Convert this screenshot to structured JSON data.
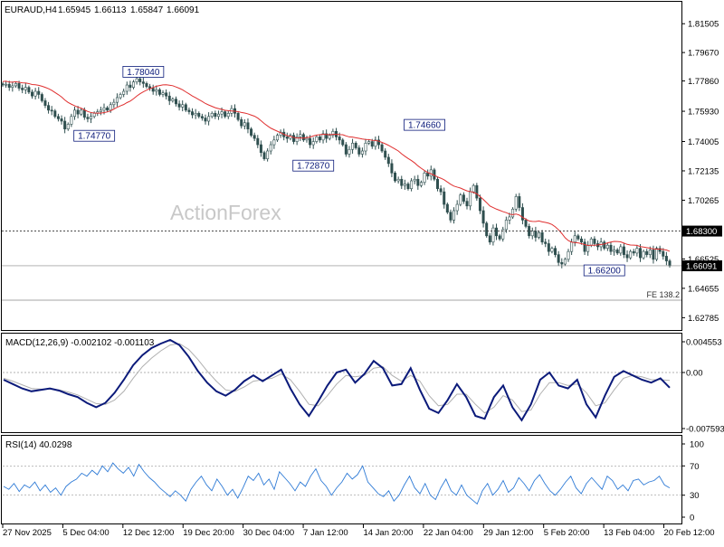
{
  "chart_data": [
    {
      "type": "candlestick",
      "symbol": "EURAUD,H4",
      "ohlc": [
        "1.65945",
        "1.66113",
        "1.65847",
        "1.66091"
      ],
      "watermark": "ActionForex",
      "ylim": [
        1.62,
        1.829
      ],
      "y_ticks": [
        "1.81505",
        "1.79670",
        "1.77860",
        "1.75930",
        "1.74005",
        "1.72135",
        "1.70265",
        "1.68300",
        "1.66525",
        "1.64655",
        "1.62785"
      ],
      "current_price": "1.66091",
      "levels": [
        {
          "label": "1.68300",
          "value": 1.683,
          "style": "dotted"
        },
        {
          "label": "1.66091",
          "value": 1.66091,
          "style": "solid"
        },
        {
          "label": "FE 138.2",
          "value": 1.639,
          "style": "solid"
        }
      ],
      "annotations": [
        {
          "label": "1.78040",
          "x": 43,
          "value": 1.7804
        },
        {
          "label": "1.74770",
          "x": 28,
          "value": 1.7477
        },
        {
          "label": "1.72870",
          "x": 95,
          "value": 1.7287
        },
        {
          "label": "1.74660",
          "x": 129,
          "value": 1.7466
        },
        {
          "label": "1.66200",
          "x": 184,
          "value": 1.662
        }
      ],
      "close": [
        1.776,
        1.7765,
        1.7745,
        1.7755,
        1.777,
        1.774,
        1.773,
        1.7745,
        1.7715,
        1.769,
        1.772,
        1.77,
        1.766,
        1.763,
        1.76,
        1.7595,
        1.756,
        1.7545,
        1.753,
        1.748,
        1.751,
        1.756,
        1.76,
        1.7575,
        1.76,
        1.7555,
        1.7545,
        1.756,
        1.758,
        1.759,
        1.76,
        1.7615,
        1.76,
        1.7635,
        1.765,
        1.768,
        1.77,
        1.772,
        1.776,
        1.7745,
        1.778,
        1.78,
        1.778,
        1.777,
        1.775,
        1.774,
        1.772,
        1.773,
        1.77,
        1.771,
        1.769,
        1.766,
        1.767,
        1.764,
        1.762,
        1.7635,
        1.76,
        1.759,
        1.757,
        1.758,
        1.756,
        1.755,
        1.753,
        1.756,
        1.758,
        1.756,
        1.7575,
        1.759,
        1.756,
        1.758,
        1.761,
        1.758,
        1.754,
        1.75,
        1.752,
        1.748,
        1.744,
        1.742,
        1.738,
        1.733,
        1.729,
        1.734,
        1.738,
        1.741,
        1.744,
        1.746,
        1.743,
        1.742,
        1.744,
        1.74,
        1.743,
        1.7445,
        1.741,
        1.742,
        1.738,
        1.74,
        1.743,
        1.741,
        1.745,
        1.742,
        1.744,
        1.7465,
        1.743,
        1.741,
        1.738,
        1.732,
        1.735,
        1.739,
        1.736,
        1.732,
        1.734,
        1.739,
        1.74,
        1.737,
        1.741,
        1.738,
        1.734,
        1.73,
        1.726,
        1.72,
        1.715,
        1.716,
        1.712,
        1.713,
        1.71,
        1.715,
        1.716,
        1.712,
        1.714,
        1.72,
        1.718,
        1.722,
        1.716,
        1.71,
        1.708,
        1.7,
        1.695,
        1.69,
        1.696,
        1.7,
        1.706,
        1.702,
        1.699,
        1.708,
        1.712,
        1.704,
        1.696,
        1.688,
        1.68,
        1.676,
        1.685,
        1.68,
        1.678,
        1.684,
        1.69,
        1.692,
        1.697,
        1.705,
        1.698,
        1.69,
        1.686,
        1.68,
        1.683,
        1.679,
        1.682,
        1.676,
        1.675,
        1.67,
        1.672,
        1.668,
        1.663,
        1.662,
        1.665,
        1.67,
        1.676,
        1.68,
        1.678,
        1.676,
        1.67,
        1.674,
        1.678,
        1.675,
        1.673,
        1.676,
        1.672,
        1.674,
        1.67,
        1.671,
        1.669,
        1.673,
        1.668,
        1.666,
        1.67,
        1.669,
        1.672,
        1.666,
        1.67,
        1.668,
        1.671,
        1.665,
        1.672,
        1.67,
        1.667,
        1.664,
        1.6609
      ]
    },
    {
      "type": "line",
      "indicator": "MACD",
      "title": "MACD(12,26,9) -0.002102 -0.001103",
      "ylim": [
        -0.008,
        0.005
      ],
      "y_ticks": [
        "0.004553",
        "0.00",
        "-0.007593"
      ],
      "macd": [
        -0.001,
        -0.0016,
        -0.0022,
        -0.0026,
        -0.0024,
        -0.0022,
        -0.0025,
        -0.003,
        -0.0034,
        -0.0042,
        -0.0048,
        -0.0042,
        -0.0028,
        -0.001,
        0.001,
        0.0024,
        0.0034,
        0.004,
        0.0045,
        0.0038,
        0.0022,
        0.0002,
        -0.0014,
        -0.0026,
        -0.0032,
        -0.0024,
        -0.0012,
        -0.0004,
        -0.0012,
        -0.0004,
        0.0004,
        -0.0022,
        -0.0044,
        -0.006,
        -0.004,
        -0.0018,
        0.0,
        0.0004,
        -0.0014,
        -0.0002,
        0.0016,
        0.0006,
        -0.0018,
        -0.0016,
        0.0006,
        -0.0024,
        -0.005,
        -0.0056,
        -0.0038,
        -0.0016,
        -0.0034,
        -0.006,
        -0.0064,
        -0.0034,
        -0.0018,
        -0.0048,
        -0.0066,
        -0.0044,
        -0.001,
        0.0,
        -0.0018,
        -0.0022,
        -0.001,
        -0.0044,
        -0.0062,
        -0.0032,
        -0.0006,
        0.0002,
        -0.0004,
        -0.001,
        -0.0014,
        -0.0008,
        -0.0021
      ],
      "signal": [
        -0.0008,
        -0.0012,
        -0.0017,
        -0.0022,
        -0.0023,
        -0.0023,
        -0.0024,
        -0.0027,
        -0.0031,
        -0.0037,
        -0.0043,
        -0.0044,
        -0.0038,
        -0.0026,
        -0.0008,
        0.0008,
        0.002,
        0.003,
        0.0038,
        0.004,
        0.0032,
        0.0018,
        0.0002,
        -0.0012,
        -0.0024,
        -0.0026,
        -0.002,
        -0.0012,
        -0.001,
        -0.0008,
        -0.0002,
        -0.001,
        -0.0026,
        -0.0044,
        -0.0046,
        -0.0032,
        -0.0016,
        -0.0004,
        -0.0006,
        -0.0004,
        0.0006,
        0.0008,
        -0.0004,
        -0.0012,
        -0.0004,
        -0.0012,
        -0.0032,
        -0.0046,
        -0.0044,
        -0.003,
        -0.003,
        -0.0044,
        -0.0056,
        -0.0048,
        -0.0032,
        -0.0038,
        -0.0054,
        -0.0052,
        -0.003,
        -0.0014,
        -0.0014,
        -0.0018,
        -0.0016,
        -0.0028,
        -0.0046,
        -0.0042,
        -0.0024,
        -0.0008,
        -0.0004,
        -0.0006,
        -0.001,
        -0.001,
        -0.0011
      ]
    },
    {
      "type": "line",
      "indicator": "RSI",
      "title": "RSI(14) 40.0298",
      "ylim": [
        0,
        100
      ],
      "y_ticks": [
        "100",
        "70",
        "30",
        "0"
      ],
      "levels": [
        70,
        30
      ],
      "values": [
        42,
        38,
        46,
        35,
        44,
        40,
        48,
        36,
        44,
        34,
        40,
        30,
        42,
        48,
        52,
        60,
        56,
        64,
        58,
        70,
        62,
        74,
        66,
        60,
        68,
        56,
        72,
        62,
        54,
        48,
        40,
        34,
        28,
        36,
        30,
        22,
        38,
        48,
        56,
        44,
        36,
        52,
        42,
        30,
        38,
        26,
        40,
        56,
        50,
        60,
        44,
        52,
        38,
        62,
        54,
        46,
        36,
        48,
        42,
        56,
        66,
        50,
        42,
        30,
        40,
        48,
        60,
        52,
        58,
        70,
        48,
        40,
        32,
        28,
        36,
        22,
        30,
        44,
        56,
        40,
        32,
        46,
        30,
        24,
        40,
        52,
        36,
        30,
        44,
        30,
        24,
        18,
        36,
        46,
        30,
        38,
        50,
        34,
        40,
        54,
        46,
        36,
        50,
        58,
        46,
        36,
        30,
        38,
        48,
        56,
        40,
        32,
        46,
        54,
        46,
        38,
        56,
        50,
        38,
        44,
        36,
        50,
        52,
        44,
        48,
        50,
        56,
        44,
        40
      ]
    }
  ],
  "x_labels": [
    "27 Nov 2025",
    "5 Dec 04:00",
    "12 Dec 12:00",
    "19 Dec 20:00",
    "30 Dec 04:00",
    "7 Jan 12:00",
    "14 Jan 20:00",
    "22 Jan 04:00",
    "29 Jan 12:00",
    "5 Feb 20:00",
    "13 Feb 04:00",
    "20 Feb 12:00"
  ],
  "colors": {
    "candle": "#2f4f4f",
    "moving_average": "#e03030",
    "macd": "#0b1a7a",
    "macd_signal": "#b0b0b0",
    "rsi": "#2f7bd6",
    "price_box_bg": "#000000",
    "annotation_text": "#0b1a7a"
  }
}
